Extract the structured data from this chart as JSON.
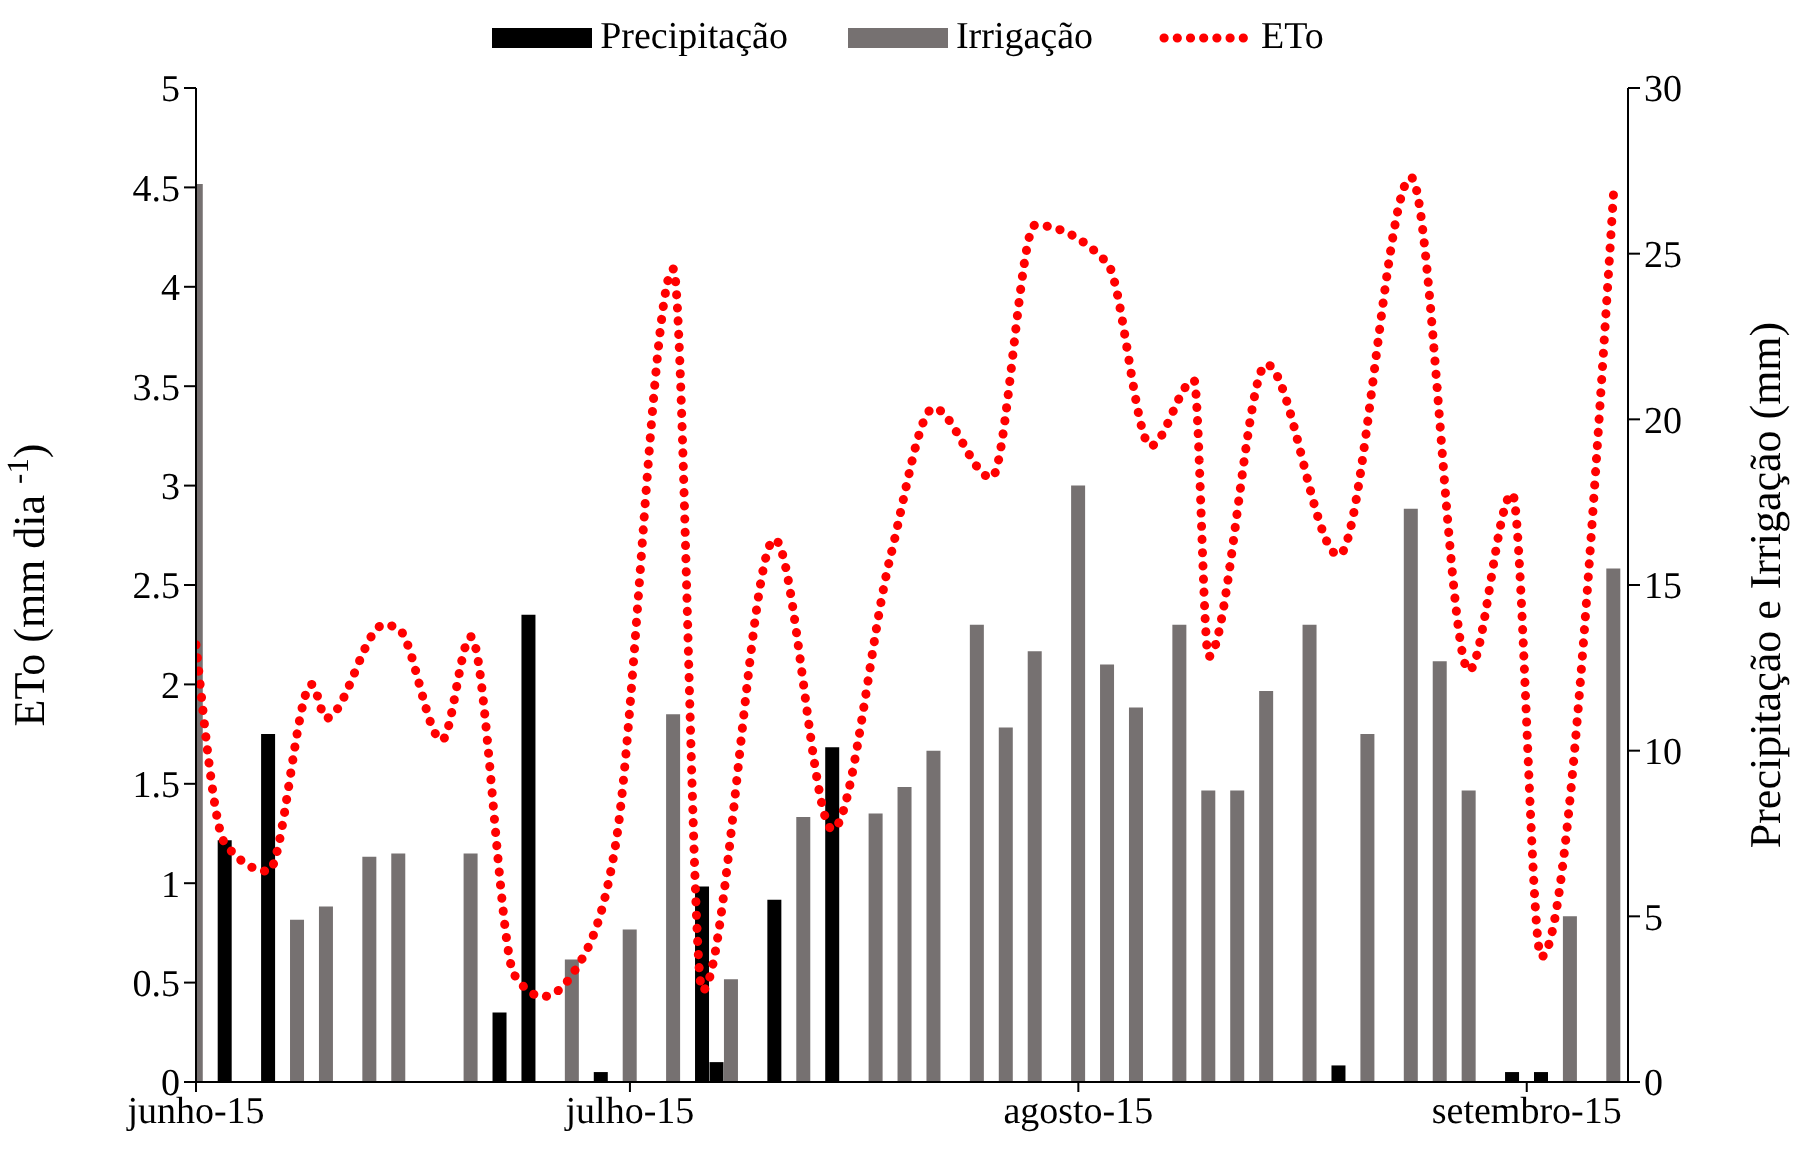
{
  "chart_data": {
    "type": "bar",
    "ylabel": "ETo (mm dia $^{-1}$)",
    "y2label": "Precipitação e Irrigação (mm)",
    "xlim": [
      "2015-06-01",
      "2015-09-08"
    ],
    "xticks": [
      {
        "value": "2015-06-01",
        "label": "junho-15"
      },
      {
        "value": "2015-07-01",
        "label": "julho-15"
      },
      {
        "value": "2015-08-01",
        "label": "agosto-15"
      },
      {
        "value": "2015-09-01",
        "label": "setembro-15"
      }
    ],
    "ylim": [
      0,
      5
    ],
    "yticks": [
      0,
      0.5,
      1,
      1.5,
      2,
      2.5,
      3,
      3.5,
      4,
      4.5,
      5
    ],
    "y2lim": [
      0,
      30
    ],
    "y2ticks": [
      0,
      5,
      10,
      15,
      20,
      25,
      30
    ],
    "legend": "top",
    "marker": "none",
    "series": [
      {
        "name": "Precipitação",
        "axis": "y2",
        "color": "#000000",
        "x": [
          "2015-06-03",
          "2015-06-06",
          "2015-06-22",
          "2015-06-24",
          "2015-06-29",
          "2015-07-06",
          "2015-07-07",
          "2015-07-11",
          "2015-07-15",
          "2015-08-19",
          "2015-08-31",
          "2015-09-02"
        ],
        "values": [
          7.3,
          10.5,
          2.1,
          14.1,
          0.3,
          5.9,
          0.6,
          5.5,
          10.1,
          0.5,
          0.3,
          0.3
        ]
      },
      {
        "name": "Irrigação",
        "axis": "y2",
        "color": "#767171",
        "x": [
          "2015-06-01",
          "2015-06-08",
          "2015-06-10",
          "2015-06-13",
          "2015-06-15",
          "2015-06-20",
          "2015-06-27",
          "2015-07-01",
          "2015-07-04",
          "2015-07-08",
          "2015-07-13",
          "2015-07-18",
          "2015-07-20",
          "2015-07-22",
          "2015-07-25",
          "2015-07-27",
          "2015-07-29",
          "2015-08-01",
          "2015-08-03",
          "2015-08-05",
          "2015-08-08",
          "2015-08-10",
          "2015-08-12",
          "2015-08-14",
          "2015-08-17",
          "2015-08-21",
          "2015-08-24",
          "2015-08-26",
          "2015-08-28",
          "2015-09-04",
          "2015-09-07"
        ],
        "values": [
          27.1,
          4.9,
          5.3,
          6.8,
          6.9,
          6.9,
          3.7,
          4.6,
          11.1,
          3.1,
          8.0,
          8.1,
          8.9,
          10.0,
          13.8,
          10.7,
          13.0,
          18.0,
          12.6,
          11.3,
          13.8,
          8.8,
          8.8,
          11.8,
          13.8,
          10.5,
          17.3,
          12.7,
          8.8,
          5.0,
          15.5
        ]
      },
      {
        "name": "ETo",
        "type": "line",
        "axis": "y",
        "color": "#ff0000",
        "line_style": "dotted",
        "x": [
          "2015-06-01",
          "2015-06-03",
          "2015-06-06",
          "2015-06-09",
          "2015-06-10",
          "2015-06-14",
          "2015-06-15",
          "2015-06-18",
          "2015-06-20",
          "2015-06-23",
          "2015-06-25",
          "2015-06-27",
          "2015-06-30",
          "2015-07-04",
          "2015-07-06",
          "2015-07-11",
          "2015-07-15",
          "2015-07-19",
          "2015-07-22",
          "2015-07-26",
          "2015-07-29",
          "2015-08-03",
          "2015-08-06",
          "2015-08-09",
          "2015-08-10",
          "2015-08-14",
          "2015-08-19",
          "2015-08-24",
          "2015-08-28",
          "2015-08-31",
          "2015-09-02",
          "2015-09-07"
        ],
        "values": [
          2.2,
          1.2,
          1.06,
          2.0,
          1.83,
          2.3,
          2.28,
          1.72,
          2.24,
          0.54,
          0.43,
          0.54,
          1.19,
          4.09,
          0.46,
          2.73,
          1.27,
          2.64,
          3.39,
          3.04,
          4.31,
          4.12,
          3.2,
          3.53,
          2.14,
          3.61,
          2.65,
          4.55,
          2.07,
          2.96,
          0.63,
          4.47
        ]
      }
    ]
  }
}
